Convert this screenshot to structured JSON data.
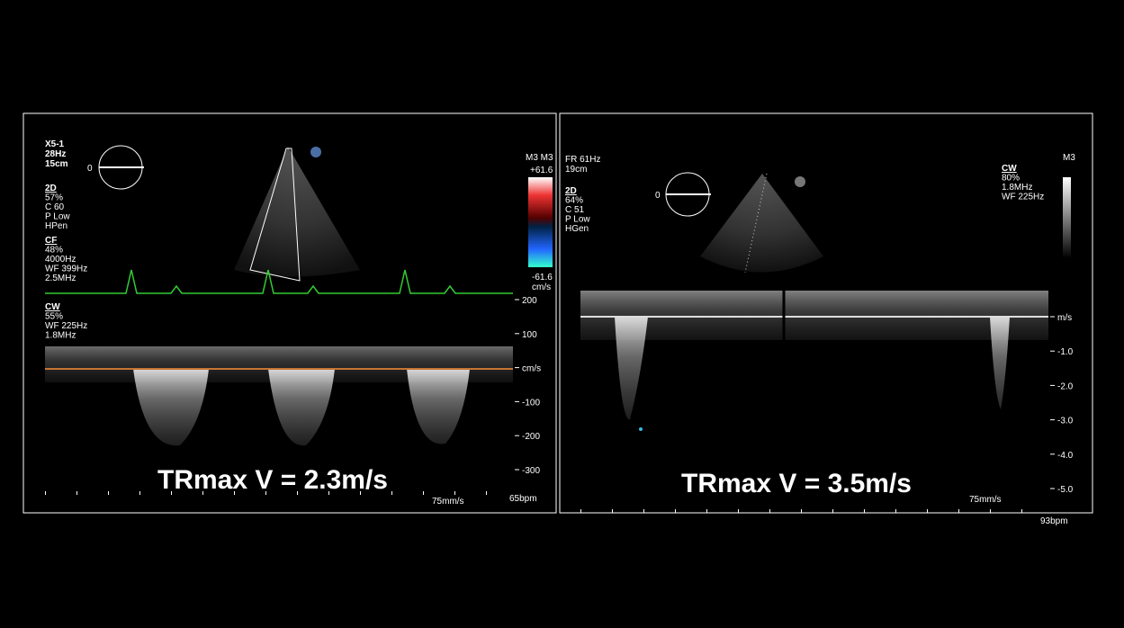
{
  "left_panel": {
    "header": [
      "X5-1",
      "28Hz",
      "15cm"
    ],
    "blocks": [
      [
        "2D",
        "57%",
        "C 60",
        "P Low",
        "HPen"
      ],
      [
        "CF",
        "48%",
        "4000Hz",
        "WF 399Hz",
        "2.5MHz"
      ],
      [
        "CW",
        "55%",
        "WF 225Hz",
        "1.8MHz"
      ]
    ],
    "orientation": "0",
    "color_bar": {
      "top_label": "M3 M3",
      "max": "+61.6",
      "min": "-61.6",
      "unit": "cm/s"
    },
    "scale": [
      "200",
      "100",
      "cm/s",
      "-100",
      "-200",
      "-300"
    ],
    "sweep": "75mm/s",
    "heart_rate": "65bpm",
    "caption": "TRmax V = 2.3m/s"
  },
  "right_panel": {
    "header": [
      "FR 61Hz",
      "19cm"
    ],
    "blocks": [
      [
        "2D",
        "64%",
        "C 51",
        "P Low",
        "HGen"
      ]
    ],
    "cw_block": [
      "CW",
      "80%",
      "1.8MHz",
      "WF 225Hz"
    ],
    "orientation": "0",
    "color_bar": {
      "top_label": "M3"
    },
    "scale": [
      "m/s",
      "-1.0",
      "-2.0",
      "-3.0",
      "-4.0",
      "-5.0"
    ],
    "sweep": "75mm/s",
    "heart_rate": "93bpm",
    "caption": "TRmax V = 3.5m/s"
  }
}
